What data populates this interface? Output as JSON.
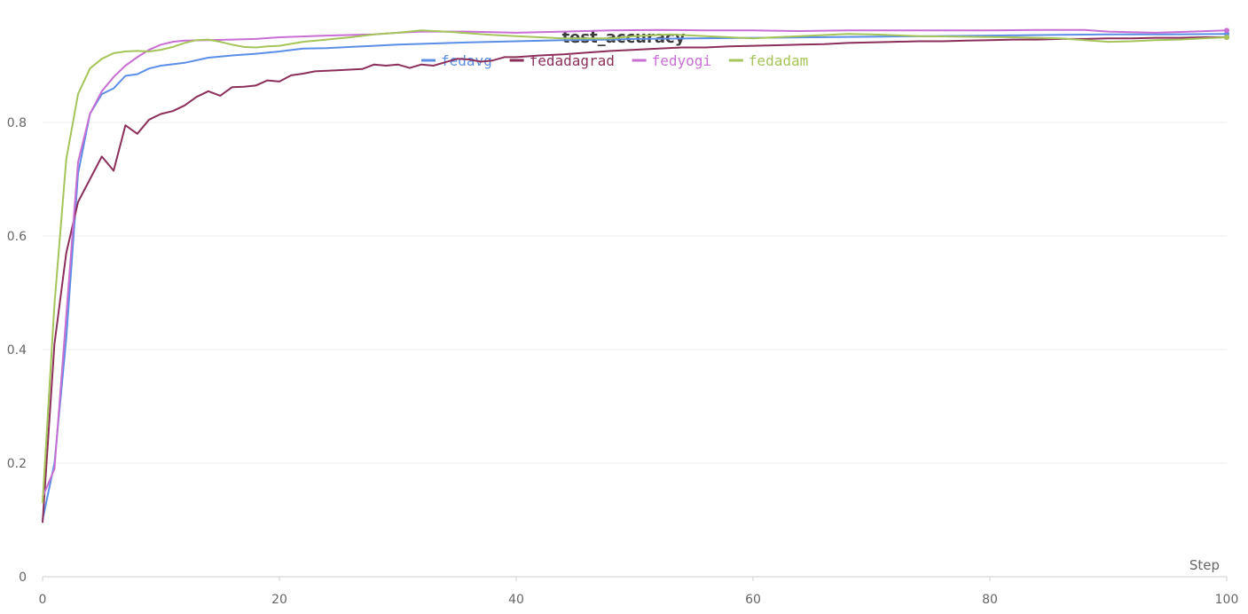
{
  "chart_data": {
    "type": "line",
    "title": "test_accuracy",
    "xlabel": "Step",
    "ylabel": "",
    "xlim": [
      0,
      100
    ],
    "ylim": [
      0,
      1.0
    ],
    "xticks": [
      0,
      20,
      40,
      60,
      80,
      100
    ],
    "yticks": [
      0,
      0.2,
      0.4,
      0.6,
      0.8
    ],
    "grid": true,
    "legend_position": "top-center",
    "series": [
      {
        "name": "fedavg",
        "color": "#5b8ee6",
        "points": [
          [
            0,
            0.1
          ],
          [
            1,
            0.2
          ],
          [
            2,
            0.42
          ],
          [
            3,
            0.71
          ],
          [
            4,
            0.815
          ],
          [
            5,
            0.85
          ],
          [
            6,
            0.86
          ],
          [
            7,
            0.882
          ],
          [
            8,
            0.885
          ],
          [
            9,
            0.895
          ],
          [
            10,
            0.9
          ],
          [
            12,
            0.905
          ],
          [
            14,
            0.914
          ],
          [
            16,
            0.918
          ],
          [
            18,
            0.921
          ],
          [
            20,
            0.925
          ],
          [
            22,
            0.93
          ],
          [
            24,
            0.931
          ],
          [
            26,
            0.933
          ],
          [
            28,
            0.935
          ],
          [
            30,
            0.937
          ],
          [
            33,
            0.939
          ],
          [
            36,
            0.941
          ],
          [
            40,
            0.943
          ],
          [
            44,
            0.945
          ],
          [
            48,
            0.946
          ],
          [
            50,
            0.947
          ],
          [
            55,
            0.948
          ],
          [
            60,
            0.949
          ],
          [
            65,
            0.95
          ],
          [
            70,
            0.951
          ],
          [
            75,
            0.952
          ],
          [
            80,
            0.953
          ],
          [
            85,
            0.954
          ],
          [
            90,
            0.955
          ],
          [
            95,
            0.955
          ],
          [
            100,
            0.956
          ]
        ]
      },
      {
        "name": "fedadagrad",
        "color": "#8b2f5a",
        "points": [
          [
            0,
            0.095
          ],
          [
            1,
            0.41
          ],
          [
            2,
            0.57
          ],
          [
            3,
            0.66
          ],
          [
            4,
            0.7
          ],
          [
            5,
            0.74
          ],
          [
            6,
            0.715
          ],
          [
            7,
            0.795
          ],
          [
            8,
            0.78
          ],
          [
            9,
            0.805
          ],
          [
            10,
            0.815
          ],
          [
            11,
            0.82
          ],
          [
            12,
            0.83
          ],
          [
            13,
            0.845
          ],
          [
            14,
            0.855
          ],
          [
            15,
            0.847
          ],
          [
            16,
            0.862
          ],
          [
            17,
            0.863
          ],
          [
            18,
            0.865
          ],
          [
            19,
            0.874
          ],
          [
            20,
            0.872
          ],
          [
            21,
            0.883
          ],
          [
            22,
            0.886
          ],
          [
            23,
            0.89
          ],
          [
            25,
            0.892
          ],
          [
            27,
            0.894
          ],
          [
            28,
            0.902
          ],
          [
            29,
            0.9
          ],
          [
            30,
            0.902
          ],
          [
            31,
            0.896
          ],
          [
            32,
            0.902
          ],
          [
            33,
            0.9
          ],
          [
            34,
            0.906
          ],
          [
            35,
            0.912
          ],
          [
            36,
            0.911
          ],
          [
            37,
            0.907
          ],
          [
            38,
            0.909
          ],
          [
            39,
            0.915
          ],
          [
            40,
            0.915
          ],
          [
            42,
            0.918
          ],
          [
            44,
            0.92
          ],
          [
            46,
            0.923
          ],
          [
            48,
            0.926
          ],
          [
            50,
            0.928
          ],
          [
            52,
            0.93
          ],
          [
            54,
            0.932
          ],
          [
            56,
            0.932
          ],
          [
            58,
            0.934
          ],
          [
            60,
            0.935
          ],
          [
            62,
            0.936
          ],
          [
            64,
            0.937
          ],
          [
            66,
            0.938
          ],
          [
            68,
            0.94
          ],
          [
            70,
            0.941
          ],
          [
            72,
            0.942
          ],
          [
            74,
            0.943
          ],
          [
            76,
            0.943
          ],
          [
            78,
            0.944
          ],
          [
            80,
            0.945
          ],
          [
            82,
            0.946
          ],
          [
            84,
            0.946
          ],
          [
            86,
            0.947
          ],
          [
            88,
            0.947
          ],
          [
            90,
            0.948
          ],
          [
            92,
            0.948
          ],
          [
            94,
            0.949
          ],
          [
            96,
            0.949
          ],
          [
            98,
            0.95
          ],
          [
            100,
            0.95
          ]
        ]
      },
      {
        "name": "fedyogi",
        "color": "#c86fd4",
        "points": [
          [
            0,
            0.14
          ],
          [
            1,
            0.19
          ],
          [
            2,
            0.46
          ],
          [
            3,
            0.73
          ],
          [
            4,
            0.815
          ],
          [
            5,
            0.855
          ],
          [
            6,
            0.88
          ],
          [
            7,
            0.9
          ],
          [
            8,
            0.915
          ],
          [
            9,
            0.928
          ],
          [
            10,
            0.937
          ],
          [
            11,
            0.942
          ],
          [
            12,
            0.944
          ],
          [
            14,
            0.945
          ],
          [
            16,
            0.946
          ],
          [
            18,
            0.947
          ],
          [
            20,
            0.95
          ],
          [
            24,
            0.953
          ],
          [
            28,
            0.955
          ],
          [
            30,
            0.958
          ],
          [
            32,
            0.96
          ],
          [
            36,
            0.96
          ],
          [
            40,
            0.958
          ],
          [
            44,
            0.96
          ],
          [
            48,
            0.962
          ],
          [
            52,
            0.963
          ],
          [
            56,
            0.962
          ],
          [
            60,
            0.962
          ],
          [
            64,
            0.961
          ],
          [
            68,
            0.962
          ],
          [
            72,
            0.962
          ],
          [
            76,
            0.962
          ],
          [
            80,
            0.962
          ],
          [
            84,
            0.963
          ],
          [
            88,
            0.963
          ],
          [
            90,
            0.96
          ],
          [
            94,
            0.958
          ],
          [
            97,
            0.96
          ],
          [
            100,
            0.962
          ]
        ]
      },
      {
        "name": "fedadam",
        "color": "#a5c45a",
        "points": [
          [
            0,
            0.13
          ],
          [
            1,
            0.48
          ],
          [
            2,
            0.735
          ],
          [
            3,
            0.85
          ],
          [
            4,
            0.895
          ],
          [
            5,
            0.912
          ],
          [
            6,
            0.922
          ],
          [
            7,
            0.925
          ],
          [
            8,
            0.926
          ],
          [
            9,
            0.925
          ],
          [
            10,
            0.928
          ],
          [
            11,
            0.933
          ],
          [
            12,
            0.94
          ],
          [
            13,
            0.945
          ],
          [
            14,
            0.946
          ],
          [
            15,
            0.942
          ],
          [
            16,
            0.937
          ],
          [
            17,
            0.933
          ],
          [
            18,
            0.932
          ],
          [
            19,
            0.934
          ],
          [
            20,
            0.935
          ],
          [
            22,
            0.942
          ],
          [
            24,
            0.946
          ],
          [
            26,
            0.95
          ],
          [
            28,
            0.955
          ],
          [
            30,
            0.958
          ],
          [
            32,
            0.962
          ],
          [
            34,
            0.96
          ],
          [
            36,
            0.957
          ],
          [
            38,
            0.954
          ],
          [
            40,
            0.952
          ],
          [
            44,
            0.948
          ],
          [
            48,
            0.948
          ],
          [
            50,
            0.952
          ],
          [
            53,
            0.955
          ],
          [
            56,
            0.952
          ],
          [
            60,
            0.948
          ],
          [
            64,
            0.952
          ],
          [
            68,
            0.956
          ],
          [
            70,
            0.955
          ],
          [
            74,
            0.952
          ],
          [
            78,
            0.951
          ],
          [
            82,
            0.95
          ],
          [
            86,
            0.948
          ],
          [
            88,
            0.945
          ],
          [
            90,
            0.942
          ],
          [
            92,
            0.943
          ],
          [
            94,
            0.945
          ],
          [
            96,
            0.946
          ],
          [
            98,
            0.948
          ],
          [
            100,
            0.95
          ]
        ]
      }
    ]
  }
}
